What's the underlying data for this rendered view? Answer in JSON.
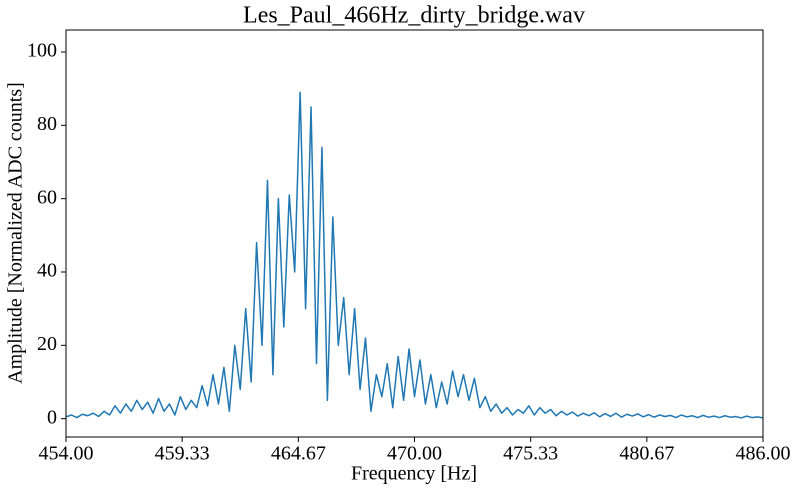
{
  "chart_data": {
    "type": "line",
    "title": "Les_Paul_466Hz_dirty_bridge.wav",
    "x_label": "Frequency [Hz]",
    "y_label": "Amplitude [Normalized ADC counts]",
    "color": "#1f77b4",
    "grid": false,
    "xlim": [
      454,
      486
    ],
    "ylim": [
      -5,
      106
    ],
    "xticks": [
      {
        "value": 454,
        "label": "454.00"
      },
      {
        "value": 459.3333,
        "label": "459.33"
      },
      {
        "value": 464.6667,
        "label": "464.67"
      },
      {
        "value": 470,
        "label": "470.00"
      },
      {
        "value": 475.3333,
        "label": "475.33"
      },
      {
        "value": 480.6667,
        "label": "480.67"
      },
      {
        "value": 486,
        "label": "486.00"
      }
    ],
    "yticks": [
      0,
      20,
      40,
      60,
      80,
      100
    ],
    "x": [
      454,
      454.25,
      454.5,
      454.75,
      455,
      455.25,
      455.5,
      455.75,
      456,
      456.25,
      456.5,
      456.75,
      457,
      457.25,
      457.5,
      457.75,
      458,
      458.25,
      458.5,
      458.75,
      459,
      459.25,
      459.5,
      459.75,
      460,
      460.25,
      460.5,
      460.75,
      461,
      461.25,
      461.5,
      461.75,
      462,
      462.25,
      462.5,
      462.75,
      463,
      463.25,
      463.5,
      463.75,
      464,
      464.25,
      464.5,
      464.75,
      465,
      465.25,
      465.5,
      465.75,
      466,
      466.25,
      466.5,
      466.75,
      467,
      467.25,
      467.5,
      467.75,
      468,
      468.25,
      468.5,
      468.75,
      469,
      469.25,
      469.5,
      469.75,
      470,
      470.25,
      470.5,
      470.75,
      471,
      471.25,
      471.5,
      471.75,
      472,
      472.25,
      472.5,
      472.75,
      473,
      473.25,
      473.5,
      473.75,
      474,
      474.25,
      474.5,
      474.75,
      475,
      475.25,
      475.5,
      475.75,
      476,
      476.25,
      476.5,
      476.75,
      477,
      477.25,
      477.5,
      477.75,
      478,
      478.25,
      478.5,
      478.75,
      479,
      479.25,
      479.5,
      479.75,
      480,
      480.25,
      480.5,
      480.75,
      481,
      481.25,
      481.5,
      481.75,
      482,
      482.25,
      482.5,
      482.75,
      483,
      483.25,
      483.5,
      483.75,
      484,
      484.25,
      484.5,
      484.75,
      485,
      485.25,
      485.5,
      485.75,
      486
    ],
    "values": [
      0.5,
      1.0,
      0.3,
      1.2,
      0.8,
      1.5,
      0.6,
      2.0,
      1.0,
      3.5,
      1.5,
      4.0,
      2.0,
      5.0,
      2.5,
      4.5,
      1.5,
      5.5,
      2.0,
      4.0,
      1.0,
      6.0,
      2.5,
      5.0,
      3.0,
      9.0,
      3.5,
      12.0,
      4.0,
      14.0,
      2.0,
      20.0,
      8.0,
      30.0,
      10.0,
      48.0,
      20.0,
      65.0,
      12.0,
      60.0,
      25.0,
      61.0,
      40.0,
      89.0,
      30.0,
      85.0,
      15.0,
      74.0,
      5.0,
      55.0,
      20.0,
      33.0,
      12.0,
      30.0,
      8.0,
      22.0,
      2.0,
      12.0,
      6.0,
      15.0,
      3.0,
      17.0,
      5.0,
      19.0,
      6.0,
      16.0,
      4.0,
      12.0,
      3.0,
      10.0,
      4.0,
      13.0,
      6.0,
      12.0,
      5.0,
      11.0,
      3.0,
      6.0,
      2.0,
      4.0,
      1.5,
      3.0,
      1.0,
      2.5,
      1.5,
      3.5,
      1.0,
      3.0,
      1.5,
      2.5,
      0.8,
      2.0,
      1.0,
      1.8,
      0.7,
      1.5,
      0.8,
      1.6,
      0.5,
      1.4,
      0.6,
      1.5,
      0.4,
      1.2,
      0.7,
      1.3,
      0.5,
      1.1,
      0.4,
      1.0,
      0.6,
      0.9,
      0.3,
      1.0,
      0.5,
      0.8,
      0.3,
      0.9,
      0.4,
      0.7,
      0.3,
      0.8,
      0.4,
      0.6,
      0.2,
      0.7,
      0.3,
      0.5,
      0.2
    ]
  }
}
